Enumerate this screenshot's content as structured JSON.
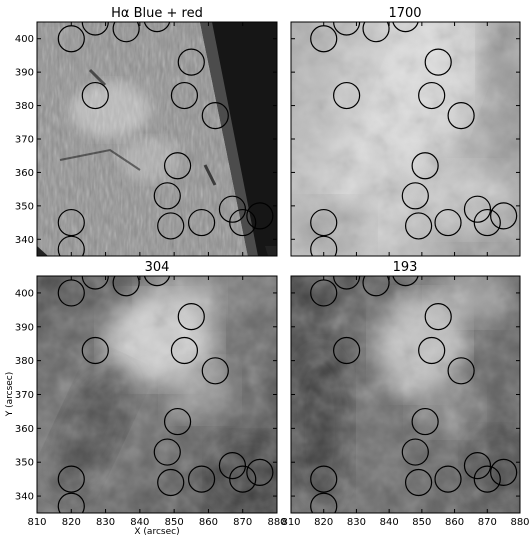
{
  "figure": {
    "xlabel": "X (arcsec)",
    "ylabel": "Y (arcsec)",
    "x_ticks": [
      810,
      820,
      830,
      840,
      850,
      860,
      870,
      880
    ],
    "y_ticks": [
      340,
      350,
      360,
      370,
      380,
      390,
      400
    ],
    "x_range": [
      810,
      880
    ],
    "y_range": [
      335,
      405
    ],
    "panels": [
      {
        "id": "halpha",
        "title": "Hα Blue + red",
        "style": "halpha"
      },
      {
        "id": "p1700",
        "title": "1700",
        "style": "uv1700"
      },
      {
        "id": "p304",
        "title": "304",
        "style": "euv304"
      },
      {
        "id": "p193",
        "title": "193",
        "style": "euv193"
      }
    ],
    "circles": [
      {
        "x": 820,
        "y": 400
      },
      {
        "x": 827,
        "y": 405
      },
      {
        "x": 836,
        "y": 403
      },
      {
        "x": 845,
        "y": 406
      },
      {
        "x": 855,
        "y": 393
      },
      {
        "x": 827,
        "y": 383
      },
      {
        "x": 853,
        "y": 383
      },
      {
        "x": 862,
        "y": 377
      },
      {
        "x": 851,
        "y": 362
      },
      {
        "x": 848,
        "y": 353
      },
      {
        "x": 820,
        "y": 345
      },
      {
        "x": 849,
        "y": 344
      },
      {
        "x": 858,
        "y": 345
      },
      {
        "x": 867,
        "y": 349
      },
      {
        "x": 870,
        "y": 345
      },
      {
        "x": 875,
        "y": 347
      },
      {
        "x": 820,
        "y": 337
      }
    ]
  }
}
